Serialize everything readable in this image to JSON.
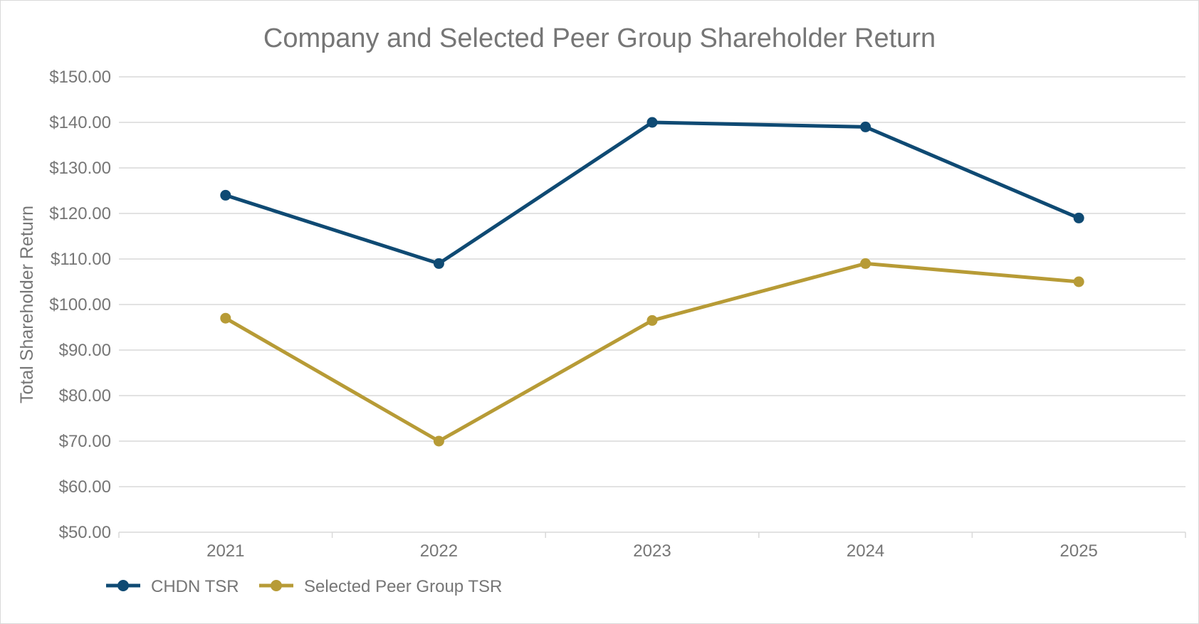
{
  "chart_data": {
    "type": "line",
    "title": "Company and Selected Peer Group Shareholder Return",
    "xlabel": "",
    "ylabel": "Total Shareholder Return",
    "categories": [
      "2021",
      "2022",
      "2023",
      "2024",
      "2025"
    ],
    "ylim": [
      50,
      150
    ],
    "ytick_step": 10,
    "ytick_labels": [
      "$50.00",
      "$60.00",
      "$70.00",
      "$80.00",
      "$90.00",
      "$100.00",
      "$110.00",
      "$120.00",
      "$130.00",
      "$140.00",
      "$150.00"
    ],
    "grid": true,
    "legend_position": "bottom-left",
    "series": [
      {
        "name": "CHDN TSR",
        "color": "#0f4a73",
        "values": [
          124,
          109,
          140,
          139,
          119
        ]
      },
      {
        "name": "Selected Peer Group TSR",
        "color": "#b79b36",
        "values": [
          97,
          70,
          96.5,
          109,
          105
        ]
      }
    ]
  }
}
